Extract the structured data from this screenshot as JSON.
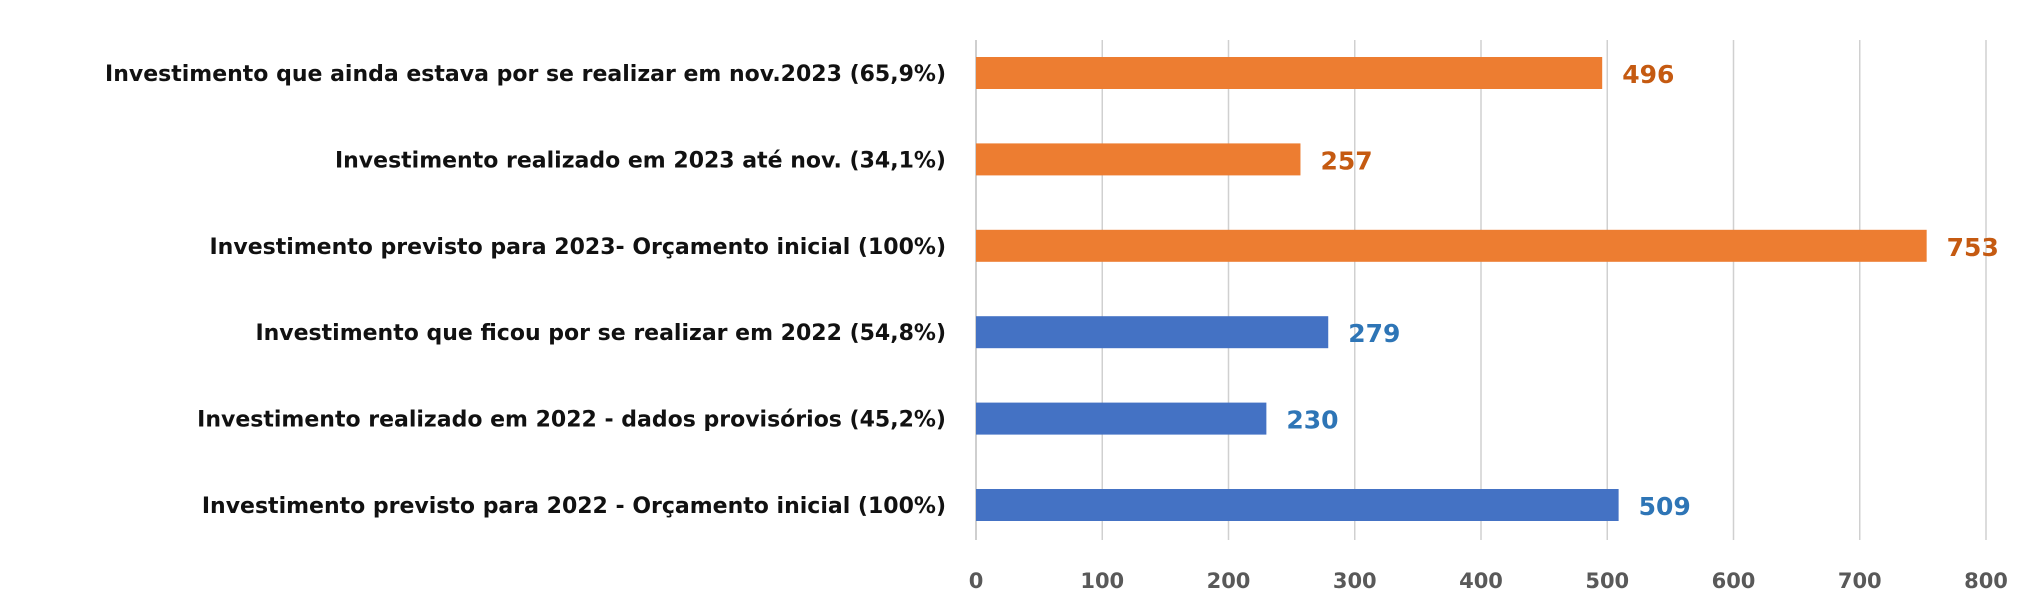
{
  "chart_data": {
    "type": "bar",
    "orientation": "horizontal",
    "title": "",
    "xlabel": "",
    "ylabel": "",
    "xlim": [
      0,
      800
    ],
    "x_ticks": [
      0,
      100,
      200,
      300,
      400,
      500,
      600,
      700,
      800
    ],
    "grid": true,
    "legend": "none",
    "categories": [
      "Investimento que ainda estava por se realizar em nov.2023 (65,9%)",
      "Investimento realizado em 2023 até nov. (34,1%)",
      "Investimento previsto para 2023- Orçamento inicial (100%)",
      "Investimento que ficou por se realizar em 2022 (54,8%)",
      "Investimento realizado em 2022 - dados provisórios (45,2%)",
      "Investimento previsto para 2022 - Orçamento inicial (100%)"
    ],
    "values": [
      496,
      257,
      753,
      279,
      230,
      509
    ],
    "bar_colors": [
      "#ED7D31",
      "#ED7D31",
      "#ED7D31",
      "#4472C4",
      "#4472C4",
      "#4472C4"
    ],
    "label_colors": [
      "#C55A11",
      "#C55A11",
      "#C55A11",
      "#2E75B6",
      "#2E75B6",
      "#2E75B6"
    ]
  }
}
